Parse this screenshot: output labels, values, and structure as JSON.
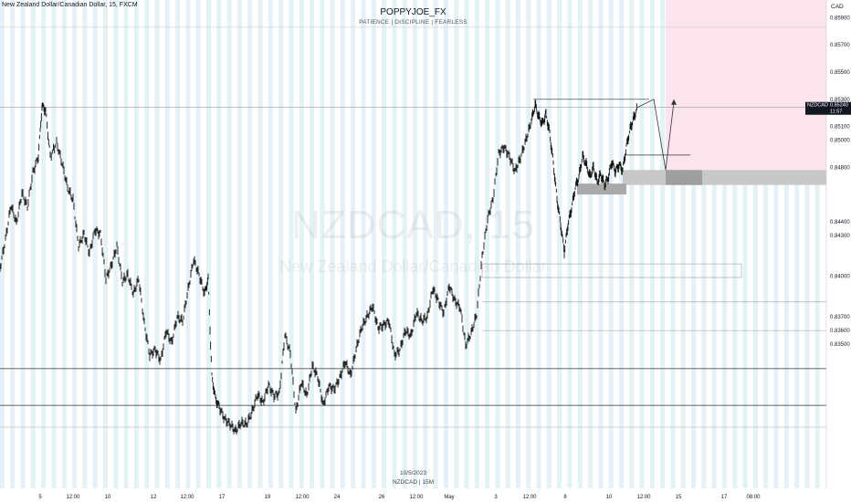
{
  "header": {
    "symbol_line": "New Zealand Dollar/Canadian Dollar, 15, FXCM"
  },
  "title": "POPPYJOE_FX",
  "subtitle": "PATIENCE  |  DISCIPLINE  |  FEARLESS",
  "watermark": {
    "symbol": "NZDCAD, 15",
    "description": "New Zealand Dollar/Canadian Dollar"
  },
  "footer": {
    "date": "10/5/2023",
    "symbol": "NZDCAD | 15M"
  },
  "price_axis": {
    "currency": "CAD",
    "current_symbol": "NZDCAD",
    "current_price": "0.85240",
    "countdown": "11:57"
  },
  "chart_data": {
    "type": "candlestick",
    "ylim": [
      0.8244,
      0.8603
    ],
    "x_tick_labels": [
      "5",
      "12:00",
      "10",
      "12",
      "12:00",
      "17",
      "19",
      "12:00",
      "24",
      "26",
      "12:00",
      "May",
      "3",
      "12:00",
      "8",
      "10",
      "12:00",
      "15",
      "17",
      "08:00"
    ],
    "y_tick_labels": [
      "0.85900",
      "0.85700",
      "0.85500",
      "0.85300",
      "0.85100",
      "0.85000",
      "0.84800",
      "0.84400",
      "0.84300",
      "0.84000",
      "0.83700",
      "0.83600",
      "0.83500"
    ],
    "price_path": [
      [
        0,
        0.8406
      ],
      [
        6,
        0.8427
      ],
      [
        12,
        0.8452
      ],
      [
        18,
        0.8439
      ],
      [
        24,
        0.8461
      ],
      [
        30,
        0.8451
      ],
      [
        36,
        0.8476
      ],
      [
        42,
        0.8488
      ],
      [
        46,
        0.8525
      ],
      [
        50,
        0.8522
      ],
      [
        55,
        0.8488
      ],
      [
        62,
        0.8498
      ],
      [
        68,
        0.8483
      ],
      [
        74,
        0.8465
      ],
      [
        80,
        0.8456
      ],
      [
        86,
        0.8422
      ],
      [
        92,
        0.8431
      ],
      [
        98,
        0.8417
      ],
      [
        104,
        0.8434
      ],
      [
        110,
        0.8431
      ],
      [
        116,
        0.8398
      ],
      [
        122,
        0.8408
      ],
      [
        128,
        0.8422
      ],
      [
        134,
        0.8396
      ],
      [
        140,
        0.8401
      ],
      [
        146,
        0.8387
      ],
      [
        152,
        0.8398
      ],
      [
        158,
        0.8365
      ],
      [
        164,
        0.8342
      ],
      [
        170,
        0.8346
      ],
      [
        176,
        0.8338
      ],
      [
        182,
        0.836
      ],
      [
        188,
        0.8351
      ],
      [
        194,
        0.837
      ],
      [
        200,
        0.8367
      ],
      [
        206,
        0.839
      ],
      [
        212,
        0.8412
      ],
      [
        218,
        0.8401
      ],
      [
        224,
        0.8387
      ],
      [
        228,
        0.8398
      ],
      [
        232,
        0.8326
      ],
      [
        236,
        0.831
      ],
      [
        240,
        0.8304
      ],
      [
        246,
        0.8295
      ],
      [
        252,
        0.8291
      ],
      [
        258,
        0.8286
      ],
      [
        264,
        0.8292
      ],
      [
        270,
        0.8291
      ],
      [
        276,
        0.83
      ],
      [
        282,
        0.8313
      ],
      [
        288,
        0.8307
      ],
      [
        294,
        0.832
      ],
      [
        300,
        0.8312
      ],
      [
        306,
        0.8314
      ],
      [
        312,
        0.8357
      ],
      [
        318,
        0.8343
      ],
      [
        324,
        0.83
      ],
      [
        330,
        0.8322
      ],
      [
        336,
        0.8312
      ],
      [
        342,
        0.8334
      ],
      [
        348,
        0.8326
      ],
      [
        354,
        0.8305
      ],
      [
        360,
        0.8319
      ],
      [
        366,
        0.8317
      ],
      [
        372,
        0.8325
      ],
      [
        378,
        0.8337
      ],
      [
        384,
        0.8327
      ],
      [
        390,
        0.8346
      ],
      [
        396,
        0.8362
      ],
      [
        402,
        0.837
      ],
      [
        408,
        0.8378
      ],
      [
        414,
        0.8362
      ],
      [
        420,
        0.8364
      ],
      [
        426,
        0.8367
      ],
      [
        432,
        0.8342
      ],
      [
        438,
        0.8346
      ],
      [
        444,
        0.836
      ],
      [
        450,
        0.8356
      ],
      [
        456,
        0.8373
      ],
      [
        462,
        0.8367
      ],
      [
        468,
        0.837
      ],
      [
        474,
        0.8391
      ],
      [
        480,
        0.8382
      ],
      [
        486,
        0.8373
      ],
      [
        492,
        0.8393
      ],
      [
        498,
        0.8382
      ],
      [
        504,
        0.8377
      ],
      [
        510,
        0.8349
      ],
      [
        516,
        0.8358
      ],
      [
        522,
        0.8372
      ],
      [
        528,
        0.8414
      ],
      [
        534,
        0.8442
      ],
      [
        540,
        0.8457
      ],
      [
        546,
        0.849
      ],
      [
        552,
        0.8495
      ],
      [
        558,
        0.8488
      ],
      [
        564,
        0.8477
      ],
      [
        570,
        0.8487
      ],
      [
        576,
        0.85
      ],
      [
        582,
        0.8514
      ],
      [
        586,
        0.8526
      ],
      [
        590,
        0.8517
      ],
      [
        594,
        0.8512
      ],
      [
        598,
        0.8519
      ],
      [
        602,
        0.8505
      ],
      [
        606,
        0.8483
      ],
      [
        610,
        0.8457
      ],
      [
        614,
        0.8438
      ],
      [
        618,
        0.8418
      ],
      [
        622,
        0.8438
      ],
      [
        626,
        0.845
      ],
      [
        630,
        0.8465
      ],
      [
        634,
        0.8473
      ],
      [
        638,
        0.8488
      ],
      [
        642,
        0.8482
      ],
      [
        646,
        0.8473
      ],
      [
        650,
        0.848
      ],
      [
        654,
        0.8469
      ],
      [
        658,
        0.8475
      ],
      [
        662,
        0.8467
      ],
      [
        666,
        0.8472
      ],
      [
        670,
        0.8484
      ],
      [
        674,
        0.8477
      ],
      [
        678,
        0.8482
      ],
      [
        682,
        0.8478
      ],
      [
        686,
        0.8495
      ],
      [
        690,
        0.8508
      ],
      [
        694,
        0.8516
      ],
      [
        698,
        0.8524
      ]
    ],
    "horizontal_levels": [
      {
        "price": 0.8524,
        "style": "thin"
      },
      {
        "price": 0.8328,
        "style": "solid"
      },
      {
        "price": 0.8305,
        "style": "solid"
      },
      {
        "price": 0.8381,
        "style": "thin"
      },
      {
        "price": 0.836,
        "style": "thin"
      }
    ],
    "markers": {
      "highs": 0.8549
    }
  }
}
